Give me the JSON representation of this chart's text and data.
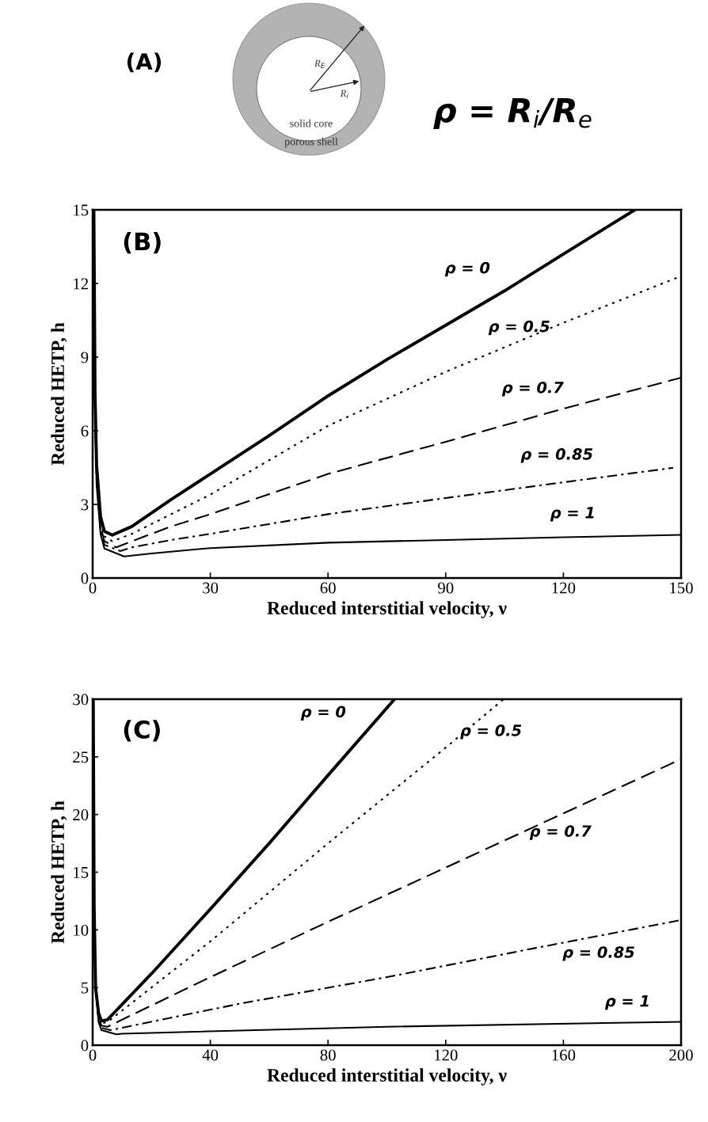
{
  "chart_data": [
    {
      "type": "other",
      "title": "(A)",
      "annotations": [
        "R$_{E}$",
        "R$_{i}$",
        "solid core",
        "porous shell",
        "ρ = R$_{i}$/R$_{e}$"
      ]
    },
    {
      "type": "line",
      "title": "(B)",
      "xlabel": "Reduced interstitial velocity, ν",
      "ylabel": "Reduced HETP, h",
      "xlim": [
        0,
        150
      ],
      "ylim": [
        0,
        15
      ],
      "xticks": [
        0,
        30,
        60,
        90,
        120,
        150
      ],
      "yticks": [
        0,
        3,
        6,
        9,
        12,
        15
      ],
      "grid": false,
      "legend": false,
      "series": [
        {
          "name": "ρ = 0",
          "color": "#000000",
          "line_style": "solid",
          "x": [
            0.3,
            0.6,
            1,
            2,
            3,
            5,
            10,
            20,
            30,
            45,
            60,
            75,
            90,
            105,
            120,
            138.2
          ],
          "values": [
            15,
            7.5,
            4.6,
            2.5,
            1.9,
            1.75,
            2.1,
            3.2,
            4.24,
            5.8,
            7.42,
            8.9,
            10.3,
            11.7,
            13.2,
            15
          ]
        },
        {
          "name": "ρ = 0.5",
          "color": "#000000",
          "line_style": "dotted",
          "x": [
            0.3,
            0.6,
            1,
            2,
            3,
            5,
            10,
            20,
            30,
            60,
            90,
            120,
            150
          ],
          "values": [
            15,
            7.3,
            4.4,
            2.3,
            1.7,
            1.5,
            1.8,
            2.6,
            3.4,
            6.2,
            8.4,
            10.4,
            12.3
          ]
        },
        {
          "name": "ρ = 0.7",
          "color": "#000000",
          "line_style": "dashed",
          "x": [
            0.3,
            0.6,
            1,
            2,
            3,
            6,
            10,
            20,
            30,
            60,
            90,
            120,
            150
          ],
          "values": [
            15,
            7.1,
            4.2,
            2.1,
            1.5,
            1.25,
            1.5,
            2.1,
            2.6,
            4.24,
            5.55,
            6.9,
            8.16
          ]
        },
        {
          "name": "ρ = 0.85",
          "color": "#000000",
          "line_style": "dashdot",
          "x": [
            0.3,
            0.6,
            1,
            2,
            3,
            7,
            10,
            20,
            30,
            60,
            90,
            120,
            148
          ],
          "values": [
            15,
            7.0,
            4.0,
            2.0,
            1.35,
            1.1,
            1.25,
            1.55,
            1.8,
            2.6,
            3.26,
            3.9,
            4.49
          ]
        },
        {
          "name": "ρ = 1",
          "color": "#000000",
          "line_style": "solid",
          "x": [
            0.3,
            0.6,
            1,
            2,
            3,
            8,
            15,
            30,
            60,
            90,
            120,
            150
          ],
          "values": [
            15,
            6.8,
            3.8,
            1.8,
            1.2,
            0.88,
            1.0,
            1.22,
            1.44,
            1.55,
            1.66,
            1.76
          ]
        }
      ]
    },
    {
      "type": "line",
      "title": "(C)",
      "xlabel": "Reduced interstitial velocity, ν",
      "ylabel": "Reduced HETP, h",
      "xlim": [
        0,
        200
      ],
      "ylim": [
        0,
        30
      ],
      "xticks": [
        0,
        40,
        80,
        120,
        160,
        200
      ],
      "yticks": [
        0,
        5,
        10,
        15,
        20,
        25,
        30
      ],
      "grid": false,
      "legend": false,
      "series": [
        {
          "name": "ρ = 0",
          "color": "#000000",
          "line_style": "solid",
          "x": [
            0.2,
            0.5,
            1,
            2,
            3,
            5,
            20,
            40,
            60,
            80,
            102.6
          ],
          "values": [
            30,
            12,
            5,
            2.8,
            2.1,
            2.2,
            6.2,
            11.8,
            17.5,
            23.4,
            30
          ]
        },
        {
          "name": "ρ = 0.5",
          "color": "#000000",
          "line_style": "dotted",
          "x": [
            0.2,
            0.5,
            1,
            2,
            3,
            5,
            40,
            80,
            120,
            139.7
          ],
          "values": [
            30,
            12,
            5,
            2.6,
            1.9,
            2.0,
            9.0,
            17.5,
            25.8,
            30
          ]
        },
        {
          "name": "ρ = 0.7",
          "color": "#000000",
          "line_style": "dashed",
          "x": [
            0.2,
            0.5,
            1,
            2,
            3,
            5,
            40,
            80,
            120,
            160,
            200
          ],
          "values": [
            30,
            12,
            5,
            2.4,
            1.7,
            1.6,
            5.9,
            10.7,
            15.4,
            20.1,
            24.8
          ]
        },
        {
          "name": "ρ = 0.85",
          "color": "#000000",
          "line_style": "dashdot",
          "x": [
            0.2,
            0.5,
            1,
            2,
            3,
            6,
            50,
            100,
            150,
            200
          ],
          "values": [
            30,
            12,
            5,
            2.2,
            1.5,
            1.3,
            3.6,
            5.9,
            8.4,
            10.85
          ]
        },
        {
          "name": "ρ = 1",
          "color": "#000000",
          "line_style": "solid",
          "x": [
            0.2,
            0.5,
            1,
            2,
            3,
            8,
            10,
            100,
            200
          ],
          "values": [
            30,
            12,
            5,
            2.0,
            1.3,
            0.95,
            1.0,
            1.6,
            2.03
          ]
        }
      ]
    }
  ]
}
